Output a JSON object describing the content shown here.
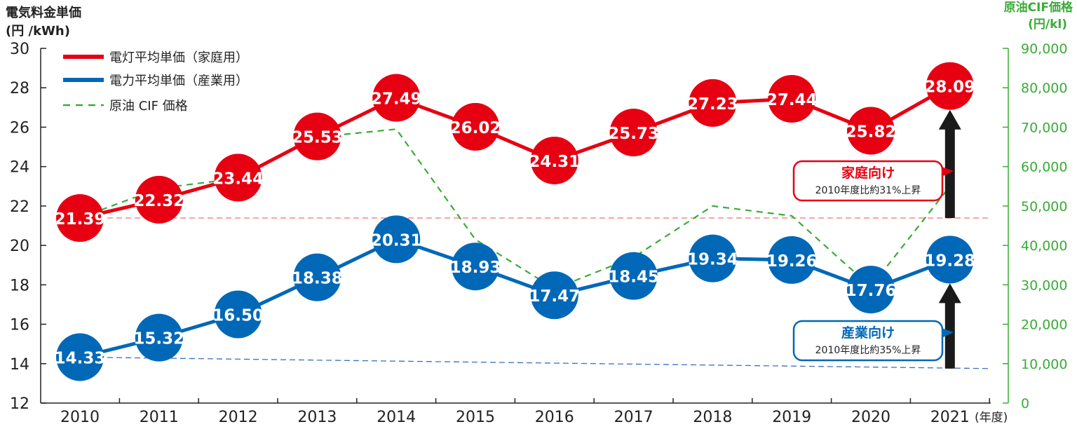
{
  "chart_data": {
    "type": "line",
    "title": "",
    "categories": [
      "2010",
      "2011",
      "2012",
      "2013",
      "2014",
      "2015",
      "2016",
      "2017",
      "2018",
      "2019",
      "2020",
      "2021"
    ],
    "x_unit_label": "(年度)",
    "left_axis": {
      "label_line1": "電気料金単価",
      "label_line2": "(円 /kWh)",
      "min": 12,
      "max": 30,
      "step": 2,
      "ticks": [
        "12",
        "14",
        "16",
        "18",
        "20",
        "22",
        "24",
        "26",
        "28",
        "30"
      ]
    },
    "right_axis": {
      "label_line1": "原油CIF価格",
      "label_line2": "(円/kl)",
      "min": 0,
      "max": 90000,
      "step": 10000,
      "ticks": [
        "0",
        "10,000",
        "20,000",
        "30,000",
        "40,000",
        "50,000",
        "60,000",
        "70,000",
        "80,000",
        "90,000"
      ]
    },
    "series": [
      {
        "name": "電灯平均単価（家庭用）",
        "axis": "left",
        "color": "#e60012",
        "values": [
          21.39,
          22.32,
          23.44,
          25.53,
          27.49,
          26.02,
          24.31,
          25.73,
          27.23,
          27.44,
          25.82,
          28.09
        ],
        "labels": [
          "21.39",
          "22.32",
          "23.44",
          "25.53",
          "27.49",
          "26.02",
          "24.31",
          "25.73",
          "27.23",
          "27.44",
          "25.82",
          "28.09"
        ]
      },
      {
        "name": "電力平均単価（産業用）",
        "axis": "left",
        "color": "#0068b7",
        "values": [
          14.33,
          15.32,
          16.5,
          18.38,
          20.31,
          18.93,
          17.47,
          18.45,
          19.34,
          19.26,
          17.76,
          19.28
        ],
        "labels": [
          "14.33",
          "15.32",
          "16.50",
          "18.38",
          "20.31",
          "18.93",
          "17.47",
          "18.45",
          "19.34",
          "19.26",
          "17.76",
          "19.28"
        ]
      },
      {
        "name": "原油 CIF 価格",
        "axis": "right",
        "color": "#3aac37",
        "style": "dashed",
        "values": [
          47000,
          54500,
          57000,
          67500,
          69500,
          41500,
          29000,
          37000,
          50000,
          47500,
          29500,
          55000
        ]
      }
    ],
    "reference_lines": [
      {
        "axis": "left",
        "value": 21.39,
        "color": "#e8737c",
        "from": "2010",
        "to": "2021"
      },
      {
        "axis": "left",
        "value_start": 14.33,
        "value_end": 13.75,
        "color": "#3a6fc0",
        "from": "2010",
        "to": "2021"
      }
    ],
    "annotations": [
      {
        "title": "家庭向け",
        "text": "2010年度比約31%上昇",
        "color": "#e60012",
        "target_series": 0,
        "category": "2021"
      },
      {
        "title": "産業向け",
        "text": "2010年度比約35%上昇",
        "color": "#0068b7",
        "target_series": 1,
        "category": "2021"
      }
    ],
    "legend_position": "top-left",
    "colors": {
      "axis_right": "#3aac37",
      "arrow": "#1a1a1a",
      "axis_left": "#222222"
    }
  }
}
